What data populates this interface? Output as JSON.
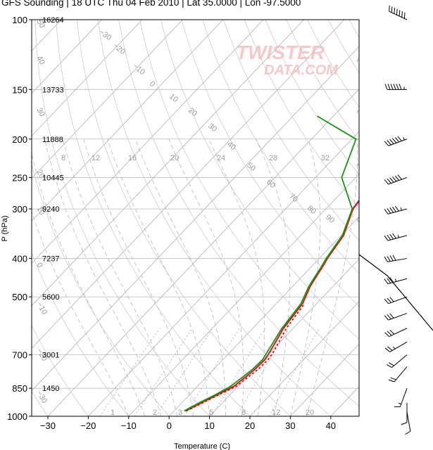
{
  "title": "GFS Sounding | 18 UTC Thu 04 Feb 2010 | Lat 35.0000 | Lon -97.5000",
  "watermark": {
    "line1": "TWISTER",
    "line2": "DATA.COM"
  },
  "colors": {
    "temperature": "#e8111a",
    "virtual_temperature": "#3355ee",
    "dewpoint": "#119911",
    "parcel": "#cc0000",
    "hodo": "#000000"
  },
  "chart_data": {
    "type": "line",
    "title": "GFS Sounding | 18 UTC Thu 04 Feb 2010 | Lat 35.0000 | Lon -97.5000",
    "xlabel": "Temperature (C)",
    "ylabel": "P (hPa)",
    "xlim": [
      -34,
      47
    ],
    "ylim": [
      1000,
      100
    ],
    "y_scale": "log",
    "x_ticks": [
      "−30",
      "−20",
      "−10",
      "0",
      "10",
      "20",
      "30",
      "40"
    ],
    "x_tick_values": [
      -30,
      -20,
      -10,
      0,
      10,
      20,
      30,
      40
    ],
    "y_ticks": [
      "100",
      "150",
      "200",
      "250",
      "300",
      "400",
      "500",
      "700",
      "850",
      "1000"
    ],
    "y_tick_values": [
      100,
      150,
      200,
      250,
      300,
      400,
      500,
      700,
      850,
      1000
    ],
    "heights": [
      {
        "p": 100,
        "label": "16264"
      },
      {
        "p": 150,
        "label": "13733"
      },
      {
        "p": 200,
        "label": "11888"
      },
      {
        "p": 250,
        "label": "10445"
      },
      {
        "p": 300,
        "label": "9240"
      },
      {
        "p": 400,
        "label": "7237"
      },
      {
        "p": 500,
        "label": "5600"
      },
      {
        "p": 700,
        "label": "3001"
      },
      {
        "p": 850,
        "label": "1450"
      }
    ],
    "isotherm_labels": [
      "−30",
      "−20",
      "−10",
      "0",
      "10",
      "20",
      "30",
      "40",
      "50",
      "60",
      "70",
      "80",
      "90",
      "100",
      "110",
      "120",
      "130",
      "140",
      "150",
      "160"
    ],
    "mixing_ratio_labels": [
      "8",
      "12",
      "16",
      "20",
      "24",
      "28",
      "32"
    ],
    "mixing_ratio_low_labels": [
      "1",
      "2",
      "3",
      "5",
      "8",
      "12",
      "20"
    ],
    "adiabat_labels": [
      "−30",
      "−20",
      "−10",
      "0",
      "10",
      "20",
      "30",
      "40",
      "50"
    ],
    "series": [
      {
        "name": "Temperature",
        "points": [
          [
            2.8,
            970
          ],
          [
            3.2,
            960
          ],
          [
            5.0,
            920
          ],
          [
            7.0,
            880
          ],
          [
            9.0,
            840
          ],
          [
            10.2,
            760
          ],
          [
            10.4,
            720
          ],
          [
            9.8,
            690
          ],
          [
            7.6,
            600
          ],
          [
            6.5,
            520
          ],
          [
            4.3,
            470
          ],
          [
            3.4,
            440
          ],
          [
            2.8,
            420
          ],
          [
            2.0,
            400
          ],
          [
            0.6,
            350
          ],
          [
            -3.3,
            300
          ],
          [
            -4.0,
            270
          ],
          [
            -4.1,
            250
          ],
          [
            -3.1,
            225
          ],
          [
            -1.2,
            200
          ],
          [
            2.0,
            175
          ],
          [
            6.0,
            150
          ],
          [
            9.0,
            130
          ],
          [
            13.2,
            100
          ]
        ]
      },
      {
        "name": "Virtual Temperature",
        "points": [
          [
            -3.5,
            300
          ],
          [
            -4.3,
            270
          ],
          [
            -4.4,
            250
          ],
          [
            -3.6,
            225
          ],
          [
            -1.9,
            200
          ],
          [
            1.1,
            175
          ],
          [
            4.5,
            150
          ],
          [
            7.7,
            130
          ],
          [
            12.6,
            100
          ]
        ]
      },
      {
        "name": "Dewpoint",
        "points": [
          [
            2.5,
            970
          ],
          [
            2.8,
            960
          ],
          [
            4.5,
            920
          ],
          [
            6.5,
            880
          ],
          [
            8.2,
            840
          ],
          [
            9.6,
            760
          ],
          [
            9.8,
            720
          ],
          [
            9.2,
            690
          ],
          [
            7.2,
            600
          ],
          [
            6.1,
            520
          ],
          [
            4.0,
            470
          ],
          [
            3.1,
            440
          ],
          [
            2.5,
            420
          ],
          [
            1.7,
            400
          ],
          [
            0.3,
            350
          ],
          [
            -3.5,
            300
          ],
          [
            -13.5,
            250
          ],
          [
            -19.0,
            200
          ],
          [
            -34.0,
            175
          ]
        ]
      },
      {
        "name": "Parcel",
        "points": [
          [
            3.0,
            970
          ],
          [
            3.5,
            960
          ],
          [
            5.4,
            920
          ],
          [
            7.4,
            880
          ],
          [
            9.6,
            840
          ],
          [
            11.0,
            760
          ],
          [
            11.2,
            720
          ],
          [
            10.7,
            690
          ],
          [
            8.3,
            600
          ],
          [
            7.0,
            520
          ]
        ]
      }
    ],
    "wind_barbs": [
      {
        "p": 100,
        "direction_deg": 295,
        "speed_kt": 70
      },
      {
        "p": 150,
        "direction_deg": 270,
        "speed_kt": 65
      },
      {
        "p": 200,
        "direction_deg": 250,
        "speed_kt": 65
      },
      {
        "p": 250,
        "direction_deg": 250,
        "speed_kt": 60
      },
      {
        "p": 300,
        "direction_deg": 255,
        "speed_kt": 55
      },
      {
        "p": 350,
        "direction_deg": 255,
        "speed_kt": 45
      },
      {
        "p": 400,
        "direction_deg": 260,
        "speed_kt": 40
      },
      {
        "p": 450,
        "direction_deg": 255,
        "speed_kt": 35
      },
      {
        "p": 500,
        "direction_deg": 250,
        "speed_kt": 30
      },
      {
        "p": 550,
        "direction_deg": 250,
        "speed_kt": 30
      },
      {
        "p": 600,
        "direction_deg": 245,
        "speed_kt": 30
      },
      {
        "p": 650,
        "direction_deg": 240,
        "speed_kt": 25
      },
      {
        "p": 700,
        "direction_deg": 230,
        "speed_kt": 20
      },
      {
        "p": 750,
        "direction_deg": 220,
        "speed_kt": 20
      },
      {
        "p": 850,
        "direction_deg": 200,
        "speed_kt": 15
      },
      {
        "p": 925,
        "direction_deg": 180,
        "speed_kt": 10
      },
      {
        "p": 975,
        "direction_deg": 170,
        "speed_kt": 10
      }
    ]
  }
}
